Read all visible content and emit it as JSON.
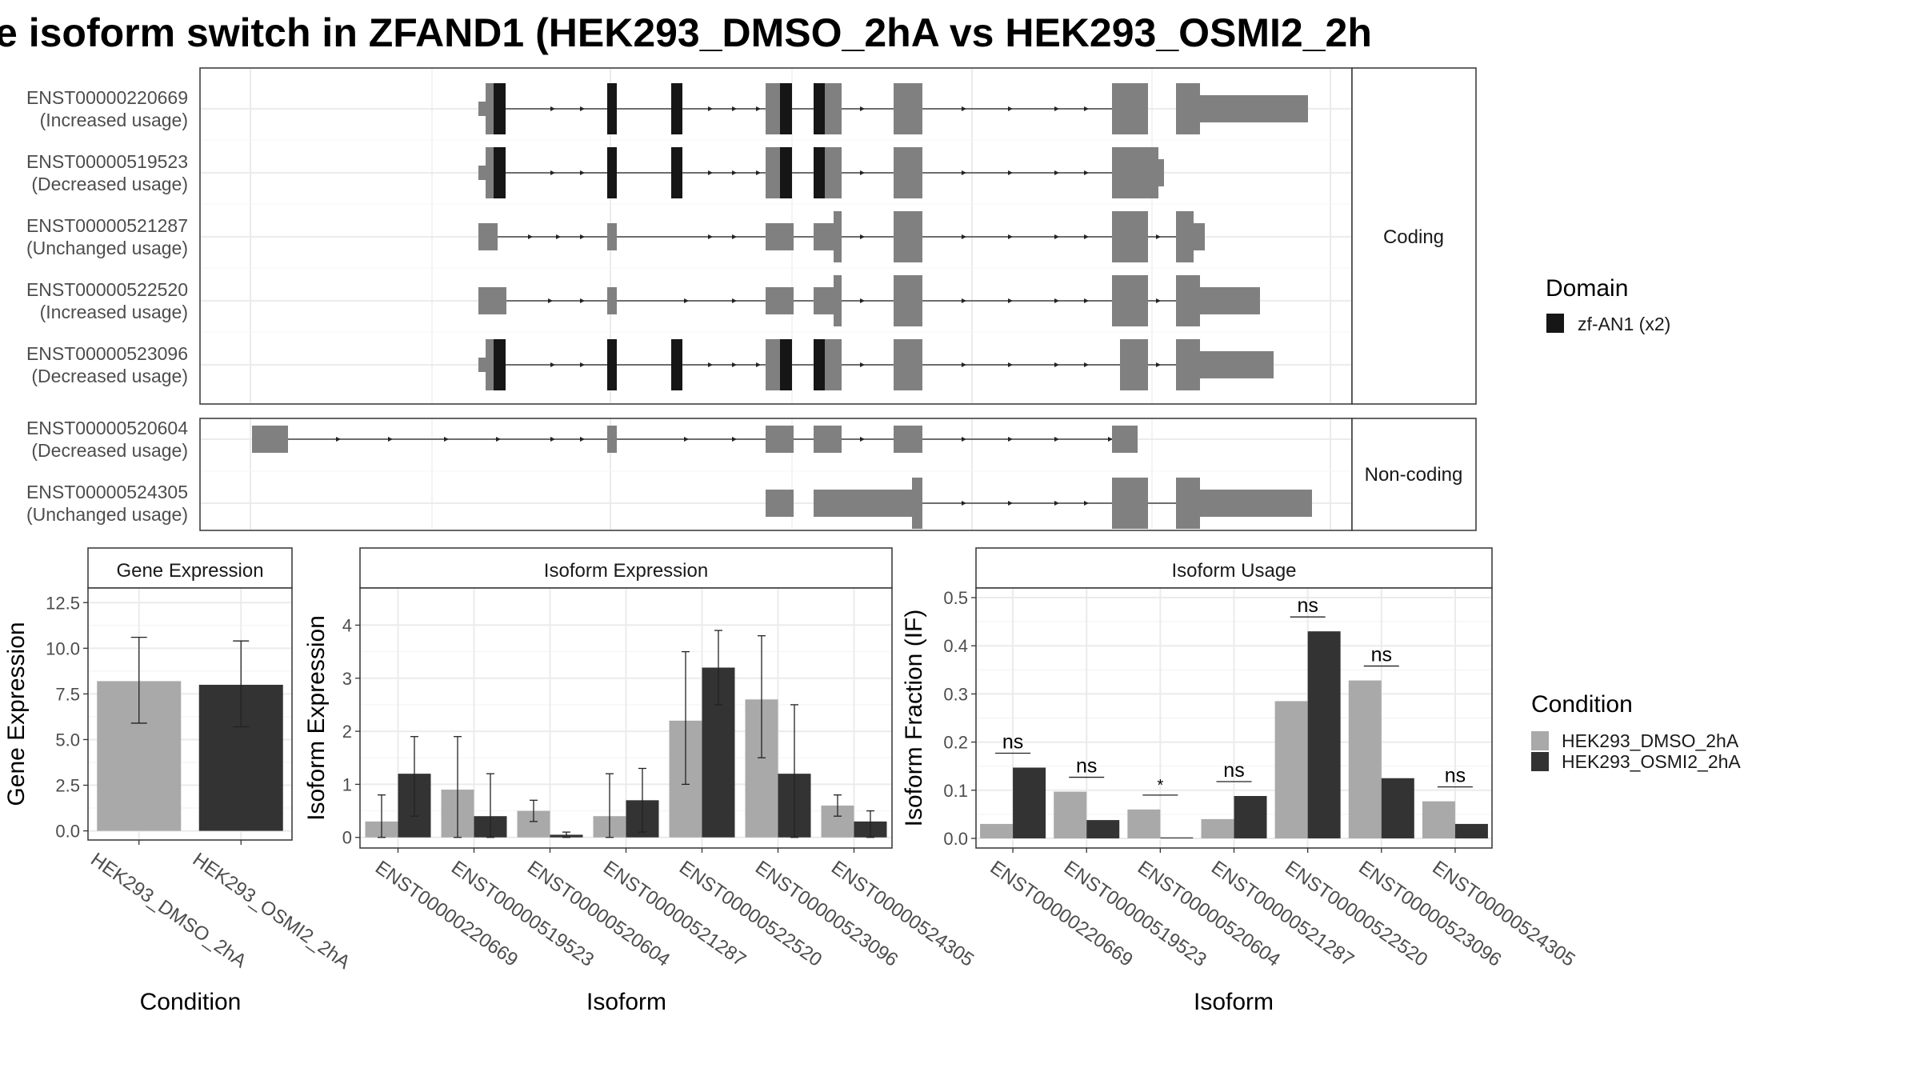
{
  "title": "e isoform switch in ZFAND1 (HEK293_DMSO_2hA vs HEK293_OSMI2_2h",
  "colors": {
    "domain": "#161616",
    "exon": "#808080",
    "condition1": "#a9a9a9",
    "condition2": "#333333",
    "grid": "#ebebeb",
    "panel_border": "#333333"
  },
  "structure": {
    "coding_label": "Coding",
    "noncoding_label": "Non-coding",
    "coding": [
      {
        "id": "ENST00000220669",
        "usage": "(Increased usage)"
      },
      {
        "id": "ENST00000519523",
        "usage": "(Decreased usage)"
      },
      {
        "id": "ENST00000521287",
        "usage": "(Unchanged usage)"
      },
      {
        "id": "ENST00000522520",
        "usage": "(Increased usage)"
      },
      {
        "id": "ENST00000523096",
        "usage": "(Decreased usage)"
      }
    ],
    "noncoding": [
      {
        "id": "ENST00000520604",
        "usage": "(Decreased usage)"
      },
      {
        "id": "ENST00000524305",
        "usage": "(Unchanged usage)"
      }
    ]
  },
  "legend_domain": {
    "title": "Domain",
    "items": [
      {
        "label": "zf-AN1 (x2)",
        "color": "#161616"
      }
    ]
  },
  "legend_condition": {
    "title": "Condition",
    "items": [
      {
        "label": "HEK293_DMSO_2hA",
        "color": "#a9a9a9"
      },
      {
        "label": "HEK293_OSMI2_2hA",
        "color": "#333333"
      }
    ]
  },
  "chart_data": [
    {
      "type": "bar",
      "title": "Gene Expression",
      "xlabel": "Condition",
      "ylabel": "Gene Expression",
      "categories": [
        "HEK293_DMSO_2hA",
        "HEK293_OSMI2_2hA"
      ],
      "values": [
        8.2,
        8.0
      ],
      "error_low": [
        5.9,
        5.7
      ],
      "error_high": [
        10.6,
        10.4
      ],
      "ylim": [
        -0.5,
        13.3
      ],
      "yticks": [
        0.0,
        2.5,
        5.0,
        7.5,
        10.0,
        12.5
      ],
      "ytick_labels": [
        "0.0",
        "2.5",
        "5.0",
        "7.5",
        "10.0",
        "12.5"
      ]
    },
    {
      "type": "bar",
      "title": "Isoform Expression",
      "xlabel": "Isoform",
      "ylabel": "Isoform Expression",
      "categories": [
        "ENST00000220669",
        "ENST00000519523",
        "ENST00000520604",
        "ENST00000521287",
        "ENST00000522520",
        "ENST00000523096",
        "ENST00000524305"
      ],
      "series": [
        {
          "name": "HEK293_DMSO_2hA",
          "values": [
            0.3,
            0.9,
            0.5,
            0.4,
            2.2,
            2.6,
            0.6
          ],
          "error_low": [
            0.0,
            0.0,
            0.3,
            0.0,
            1.0,
            1.5,
            0.4
          ],
          "error_high": [
            0.8,
            1.9,
            0.7,
            1.2,
            3.5,
            3.8,
            0.8
          ]
        },
        {
          "name": "HEK293_OSMI2_2hA",
          "values": [
            1.2,
            0.4,
            0.05,
            0.7,
            3.2,
            1.2,
            0.3
          ],
          "error_low": [
            0.4,
            0.0,
            0.0,
            0.1,
            2.5,
            0.0,
            0.0
          ],
          "error_high": [
            1.9,
            1.2,
            0.1,
            1.3,
            3.9,
            2.5,
            0.5
          ]
        }
      ],
      "ylim": [
        -0.2,
        4.7
      ],
      "yticks": [
        0,
        1,
        2,
        3,
        4
      ],
      "ytick_labels": [
        "0",
        "1",
        "2",
        "3",
        "4"
      ]
    },
    {
      "type": "bar",
      "title": "Isoform Usage",
      "xlabel": "Isoform",
      "ylabel": "Isoform Fraction (IF)",
      "categories": [
        "ENST00000220669",
        "ENST00000519523",
        "ENST00000520604",
        "ENST00000521287",
        "ENST00000522520",
        "ENST00000523096",
        "ENST00000524305"
      ],
      "series": [
        {
          "name": "HEK293_DMSO_2hA",
          "values": [
            0.03,
            0.097,
            0.06,
            0.04,
            0.285,
            0.328,
            0.077
          ]
        },
        {
          "name": "HEK293_OSMI2_2hA",
          "values": [
            0.147,
            0.038,
            0.002,
            0.088,
            0.43,
            0.125,
            0.03
          ]
        }
      ],
      "significance": [
        "ns",
        "ns",
        "*",
        "ns",
        "ns",
        "ns",
        "ns"
      ],
      "ylim": [
        -0.02,
        0.52
      ],
      "yticks": [
        0.0,
        0.1,
        0.2,
        0.3,
        0.4,
        0.5
      ],
      "ytick_labels": [
        "0.0",
        "0.1",
        "0.2",
        "0.3",
        "0.4",
        "0.5"
      ]
    }
  ]
}
